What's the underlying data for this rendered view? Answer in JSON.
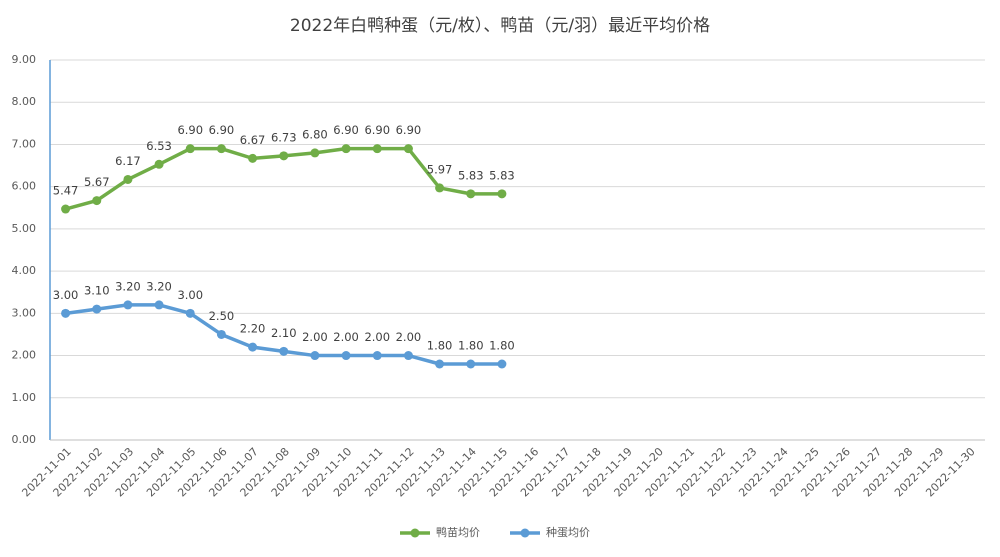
{
  "chart_data": {
    "type": "line",
    "title": "2022年白鸭种蛋（元/枚）、鸭苗（元/羽）最近平均价格",
    "categories": [
      "2022-11-01",
      "2022-11-02",
      "2022-11-03",
      "2022-11-04",
      "2022-11-05",
      "2022-11-06",
      "2022-11-07",
      "2022-11-08",
      "2022-11-09",
      "2022-11-10",
      "2022-11-11",
      "2022-11-12",
      "2022-11-13",
      "2022-11-14",
      "2022-11-15",
      "2022-11-16",
      "2022-11-17",
      "2022-11-18",
      "2022-11-19",
      "2022-11-20",
      "2022-11-21",
      "2022-11-22",
      "2022-11-23",
      "2022-11-24",
      "2022-11-25",
      "2022-11-26",
      "2022-11-27",
      "2022-11-28",
      "2022-11-29",
      "2022-11-30"
    ],
    "series": [
      {
        "name": "鸭苗均价",
        "color": "#70ad47",
        "values": [
          5.47,
          5.67,
          6.17,
          6.53,
          6.9,
          6.9,
          6.67,
          6.73,
          6.8,
          6.9,
          6.9,
          6.9,
          5.97,
          5.83,
          5.83,
          null,
          null,
          null,
          null,
          null,
          null,
          null,
          null,
          null,
          null,
          null,
          null,
          null,
          null,
          null
        ],
        "value_labels": [
          "5.47",
          "5.67",
          "6.17",
          "6.53",
          "6.90",
          "6.90",
          "6.67",
          "6.73",
          "6.80",
          "6.90",
          "6.90",
          "6.90",
          "5.97",
          "5.83",
          "5.83",
          null,
          null,
          null,
          null,
          null,
          null,
          null,
          null,
          null,
          null,
          null,
          null,
          null,
          null,
          null
        ]
      },
      {
        "name": "种蛋均价",
        "color": "#5b9bd5",
        "values": [
          3,
          3.1,
          3.2,
          3.2,
          3,
          2.5,
          2.2,
          2.1,
          2,
          2,
          2,
          2,
          1.8,
          1.8,
          1.8,
          null,
          null,
          null,
          null,
          null,
          null,
          null,
          null,
          null,
          null,
          null,
          null,
          null,
          null,
          null
        ],
        "value_labels": [
          "3.00",
          "3.10",
          "3.20",
          "3.20",
          "3.00",
          "2.50",
          "2.20",
          "2.10",
          "2.00",
          "2.00",
          "2.00",
          "2.00",
          "1.80",
          "1.80",
          "1.80",
          null,
          null,
          null,
          null,
          null,
          null,
          null,
          null,
          null,
          null,
          null,
          null,
          null,
          null,
          null
        ]
      }
    ],
    "ylim": [
      0,
      9
    ],
    "yticks": [
      {
        "value": 0,
        "label": "0.00"
      },
      {
        "value": 1,
        "label": "1.00"
      },
      {
        "value": 2,
        "label": "2.00"
      },
      {
        "value": 3,
        "label": "3.00"
      },
      {
        "value": 4,
        "label": "4.00"
      },
      {
        "value": 5,
        "label": "5.00"
      },
      {
        "value": 6,
        "label": "6.00"
      },
      {
        "value": 7,
        "label": "7.00"
      },
      {
        "value": 8,
        "label": "8.00"
      },
      {
        "value": 9,
        "label": "9.00"
      }
    ],
    "grid": true,
    "legend": "bottom"
  }
}
